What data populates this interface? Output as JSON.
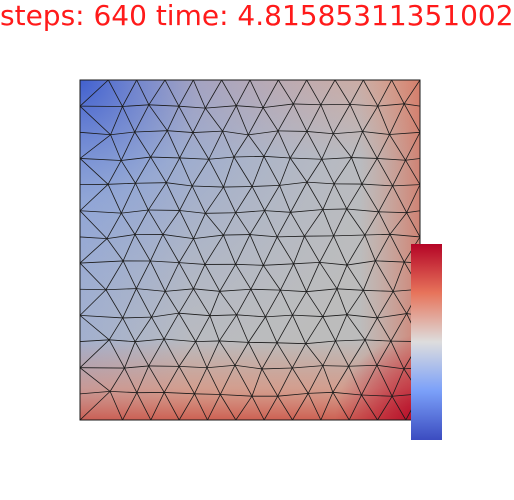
{
  "header": {
    "title": "steps: 640 time: 4.81585311351002",
    "color": "#ff1a1a"
  },
  "mesh": {
    "edge_color": "#1a1a1a",
    "field_colors": {
      "low": "#3b4cc0",
      "mid": "#dddddd",
      "high": "#b40426"
    }
  },
  "colorbar": {
    "colormap": "coolwarm",
    "orientation": "vertical"
  }
}
